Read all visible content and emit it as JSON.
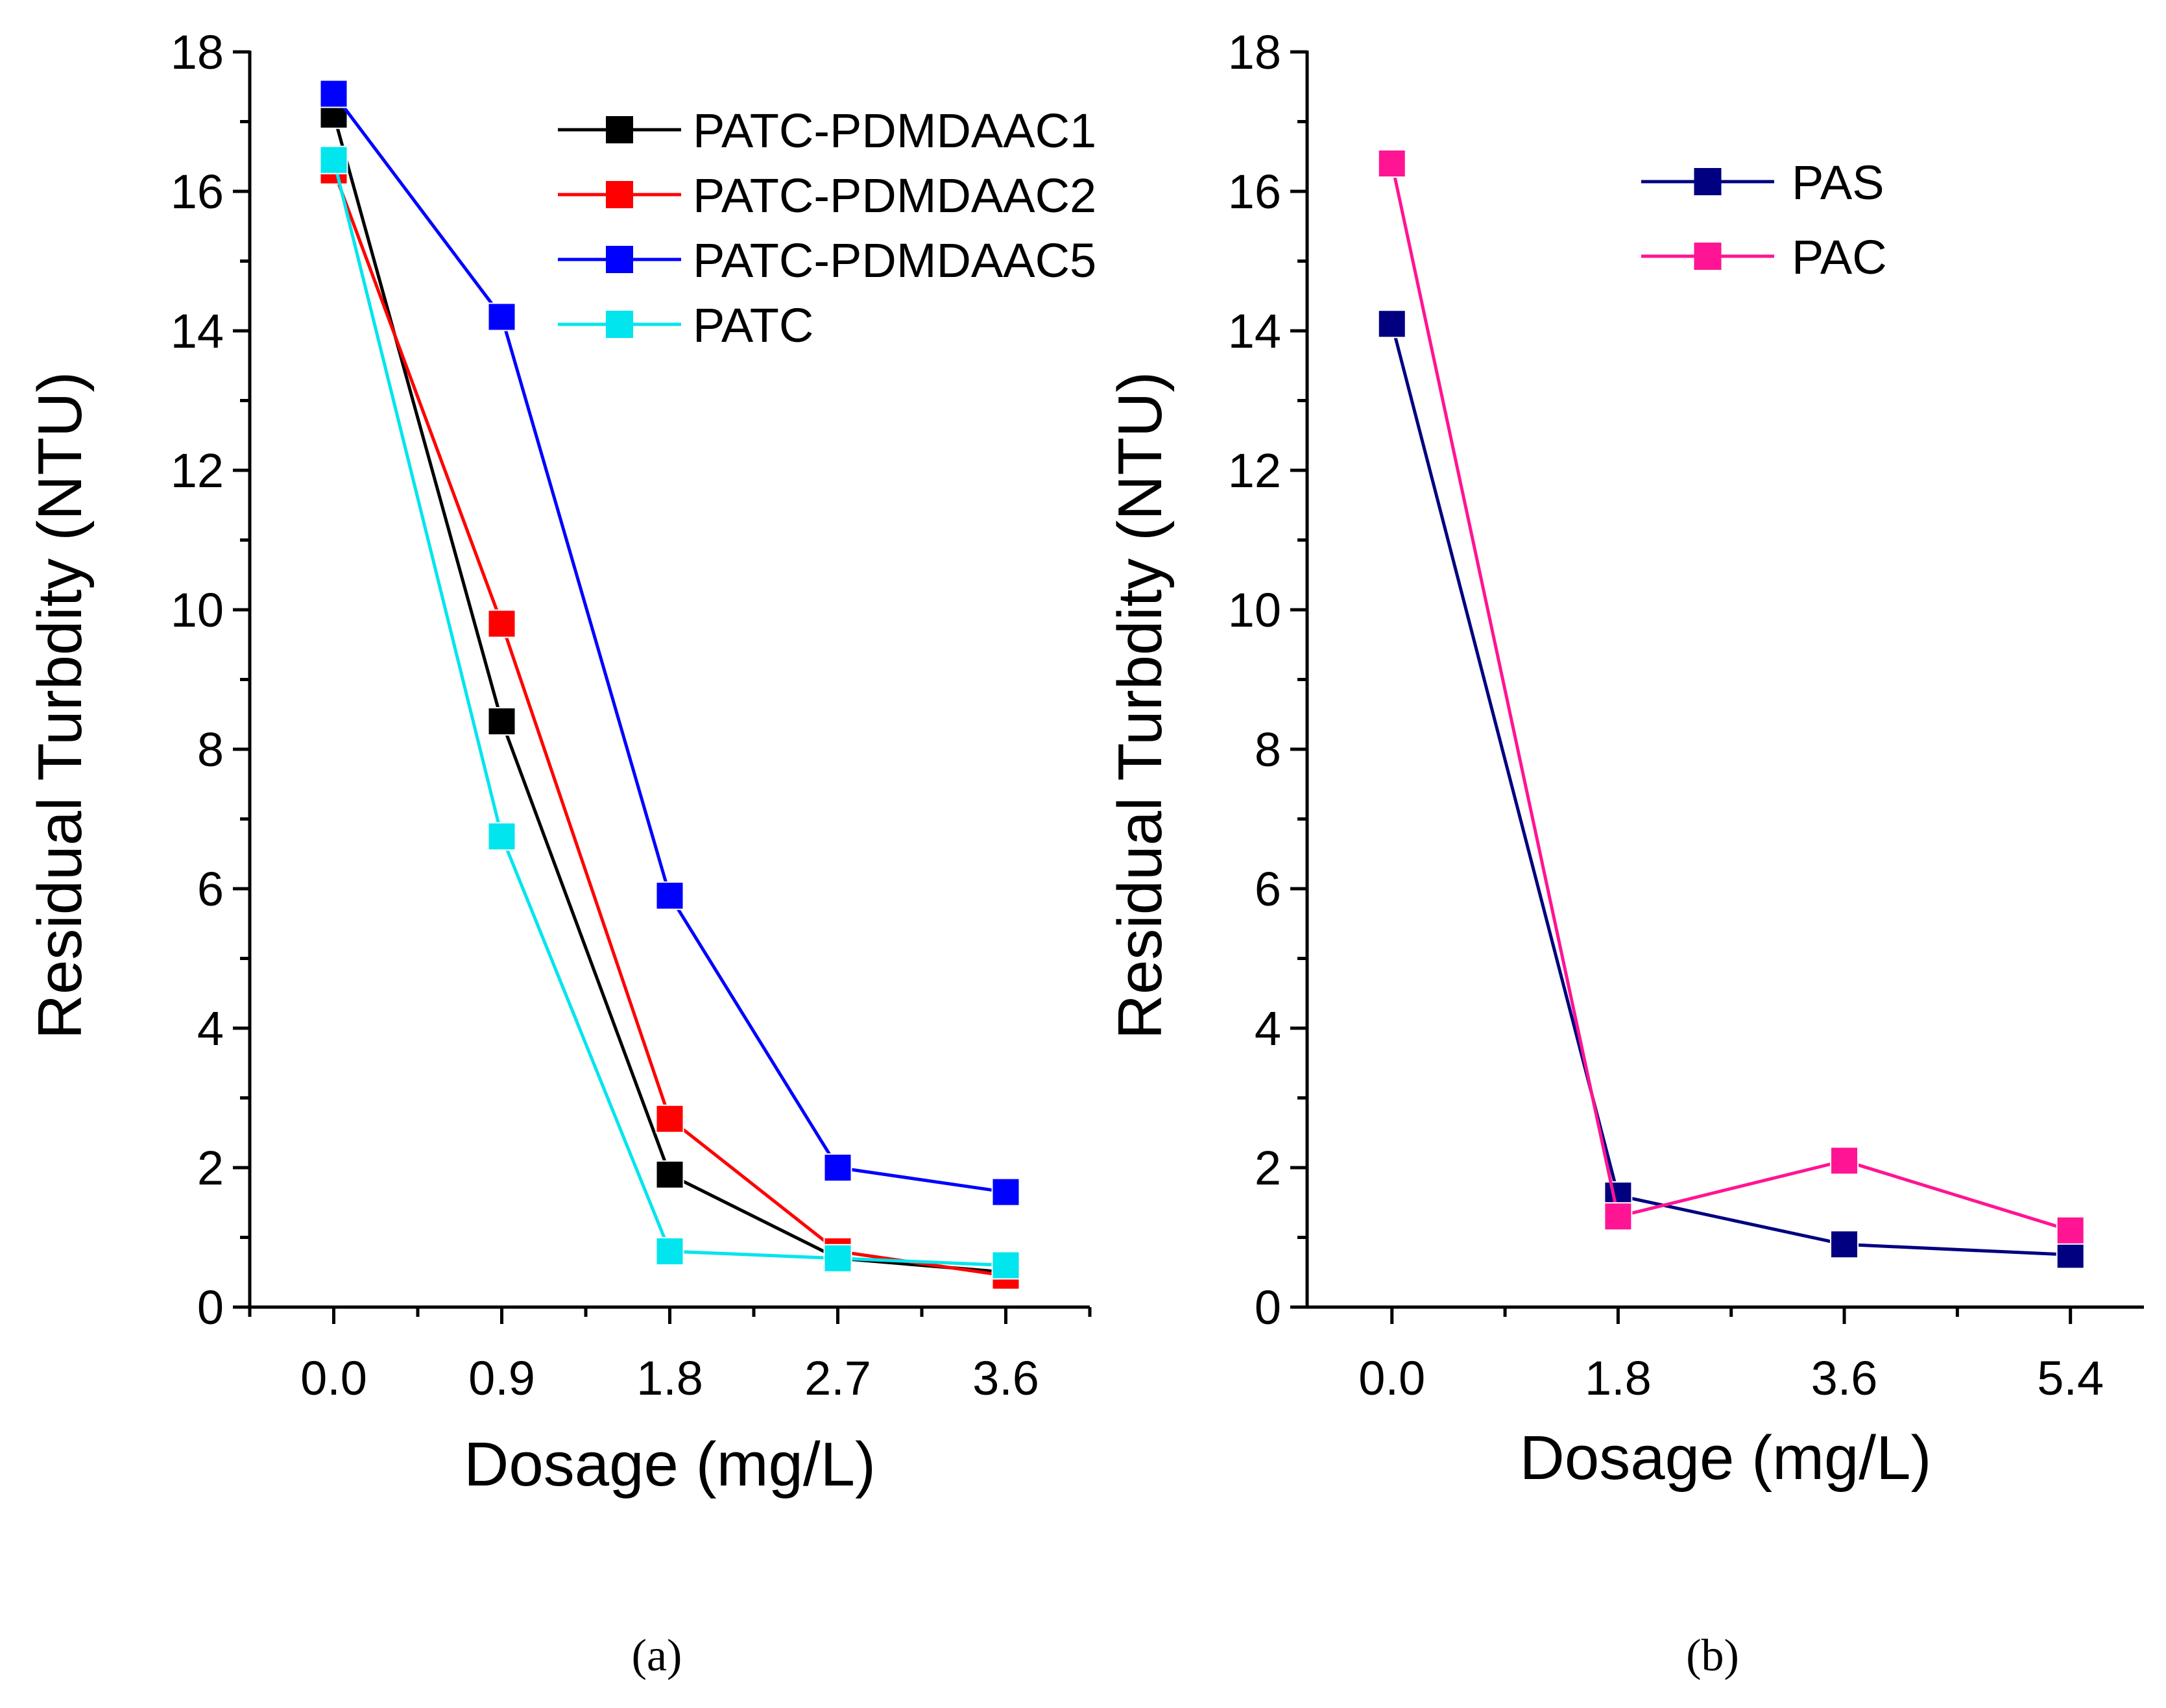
{
  "chart_data": [
    {
      "type": "line",
      "panel_label": "(a)",
      "xlabel": "Dosage (mg/L)",
      "ylabel": "Residual Turbdity (NTU)",
      "x": [
        0.0,
        0.9,
        1.8,
        2.7,
        3.6
      ],
      "x_tick_labels": [
        "0.0",
        "0.9",
        "1.8",
        "2.7",
        "3.6"
      ],
      "xlim": [
        -0.45,
        4.05
      ],
      "ylim": [
        0,
        18
      ],
      "y_ticks": [
        0,
        2,
        4,
        6,
        8,
        10,
        12,
        14,
        16,
        18
      ],
      "y_tick_labels": [
        "0",
        "2",
        "4",
        "6",
        "8",
        "10",
        "12",
        "14",
        "16",
        "18"
      ],
      "legend_position": "top-right",
      "series": [
        {
          "name": "PATC-PDMDAAC1",
          "color": "#000000",
          "values": [
            17.1,
            8.4,
            1.9,
            0.7,
            0.5
          ]
        },
        {
          "name": "PATC-PDMDAAC2",
          "color": "#ff0000",
          "values": [
            16.3,
            9.8,
            2.7,
            0.8,
            0.45
          ]
        },
        {
          "name": "PATC-PDMDAAC5",
          "color": "#0000ff",
          "values": [
            17.4,
            14.2,
            5.9,
            2.0,
            1.65
          ]
        },
        {
          "name": "PATC",
          "color": "#00e5ee",
          "values": [
            16.45,
            6.75,
            0.8,
            0.7,
            0.6
          ]
        }
      ]
    },
    {
      "type": "line",
      "panel_label": "(b)",
      "xlabel": "Dosage (mg/L)",
      "ylabel": "Residual Turbdity (NTU)",
      "x": [
        0.0,
        1.8,
        3.6,
        5.4
      ],
      "x_tick_labels": [
        "0.0",
        "1.8",
        "3.6",
        "5.4"
      ],
      "xlim": [
        -0.675,
        5.985
      ],
      "ylim": [
        0,
        18
      ],
      "y_ticks": [
        0,
        2,
        4,
        6,
        8,
        10,
        12,
        14,
        16,
        18
      ],
      "y_tick_labels": [
        "0",
        "2",
        "4",
        "6",
        "8",
        "10",
        "12",
        "14",
        "16",
        "18"
      ],
      "legend_position": "top",
      "series": [
        {
          "name": "PAS",
          "color": "#000080",
          "values": [
            14.1,
            1.6,
            0.9,
            0.75
          ]
        },
        {
          "name": "PAC",
          "color": "#ff1493",
          "values": [
            16.4,
            1.3,
            2.1,
            1.1
          ]
        }
      ]
    }
  ]
}
